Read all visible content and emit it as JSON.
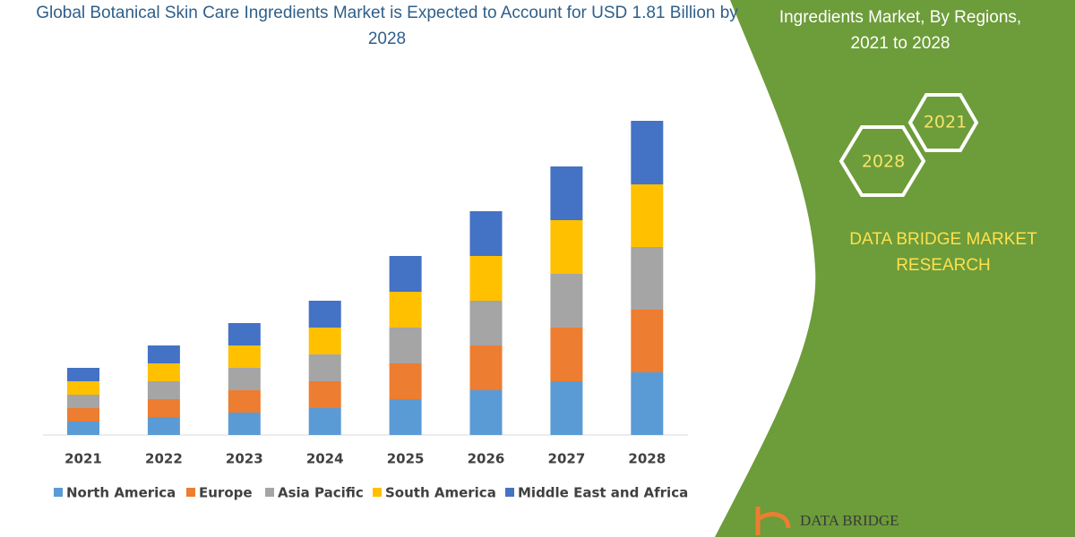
{
  "chart_data": {
    "type": "bar",
    "stacked": true,
    "title": "Global Botanical Skin Care Ingredients Market is Expected to Account for USD 1.81 Billion by 2028",
    "categories": [
      "2021",
      "2022",
      "2023",
      "2024",
      "2025",
      "2026",
      "2027",
      "2028"
    ],
    "series": [
      {
        "name": "North America",
        "color": "#5b9bd5",
        "values": [
          15,
          20,
          25,
          30,
          40,
          50,
          60,
          70
        ]
      },
      {
        "name": "Europe",
        "color": "#ed7d31",
        "values": [
          15,
          20,
          25,
          30,
          40,
          50,
          60,
          70
        ]
      },
      {
        "name": "Asia Pacific",
        "color": "#a5a5a5",
        "values": [
          15,
          20,
          25,
          30,
          40,
          50,
          60,
          70
        ]
      },
      {
        "name": "South America",
        "color": "#ffc000",
        "values": [
          15,
          20,
          25,
          30,
          40,
          50,
          60,
          70
        ]
      },
      {
        "name": "Middle East and Africa",
        "color": "#4472c4",
        "values": [
          15,
          20,
          25,
          30,
          40,
          50,
          60,
          71
        ]
      }
    ],
    "ylim": [
      0,
      360
    ]
  },
  "panel": {
    "heading": [
      "Ingredients Market, By Regions,",
      "2021 to 2028"
    ],
    "hexagons": [
      "2021",
      "2028"
    ],
    "brand": [
      "DATA BRIDGE MARKET",
      "RESEARCH"
    ],
    "logo": "DATA BRIDGE"
  }
}
